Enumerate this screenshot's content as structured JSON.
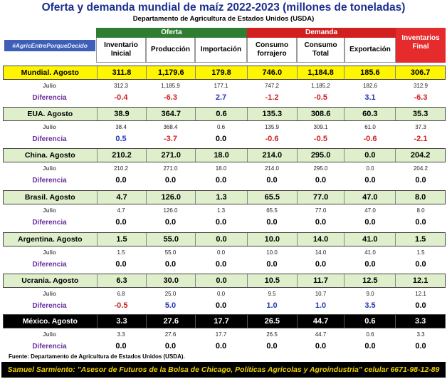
{
  "title": "Oferta y demanda mundial de maíz 2022-2023 (millones de toneladas)",
  "subtitle": "Departamento de Agricultura de Estados Unidos (USDA)",
  "hashtag": "#AgricEntrePorqueDecido",
  "groups": {
    "oferta": "Oferta",
    "demanda": "Demanda",
    "final": "Inventarios Final"
  },
  "columns": [
    "Inventario Inicial",
    "Producción",
    "Importación",
    "Consumo forrajero",
    "Consumo Total",
    "Exportación"
  ],
  "rows": [
    {
      "name": "Mundial. Agosto",
      "agosto": [
        "311.8",
        "1,179.6",
        "179.8",
        "746.0",
        "1,184.8",
        "185.6",
        "306.7"
      ],
      "julio_label": "Julio",
      "julio": [
        "312.3",
        "1,185.9",
        "177.1",
        "747.2",
        "1,185.2",
        "182.6",
        "312.9"
      ],
      "dif_label": "Diferencia",
      "dif": [
        "-0.4",
        "-6.3",
        "2.7",
        "-1.2",
        "-0.5",
        "3.1",
        "-6.3"
      ]
    },
    {
      "name": "EUA. Agosto",
      "agosto": [
        "38.9",
        "364.7",
        "0.6",
        "135.3",
        "308.6",
        "60.3",
        "35.3"
      ],
      "julio_label": "Julio",
      "julio": [
        "38.4",
        "368.4",
        "0.6",
        "135.9",
        "309.1",
        "61.0",
        "37.3"
      ],
      "dif_label": "Diferencia",
      "dif": [
        "0.5",
        "-3.7",
        "0.0",
        "-0.6",
        "-0.5",
        "-0.6",
        "-2.1"
      ]
    },
    {
      "name": "China. Agosto",
      "agosto": [
        "210.2",
        "271.0",
        "18.0",
        "214.0",
        "295.0",
        "0.0",
        "204.2"
      ],
      "julio_label": "Julio",
      "julio": [
        "210.2",
        "271.0",
        "18.0",
        "214.0",
        "295.0",
        "0.0",
        "204.2"
      ],
      "dif_label": "Diferencia",
      "dif": [
        "0.0",
        "0.0",
        "0.0",
        "0.0",
        "0.0",
        "0.0",
        "0.0"
      ]
    },
    {
      "name": "Brasil. Agosto",
      "agosto": [
        "4.7",
        "126.0",
        "1.3",
        "65.5",
        "77.0",
        "47.0",
        "8.0"
      ],
      "julio_label": "Julio",
      "julio": [
        "4.7",
        "126.0",
        "1.3",
        "65.5",
        "77.0",
        "47.0",
        "8.0"
      ],
      "dif_label": "Diferencia",
      "dif": [
        "0.0",
        "0.0",
        "0.0",
        "0.0",
        "0.0",
        "0.0",
        "0.0"
      ]
    },
    {
      "name": "Argentina. Agosto",
      "agosto": [
        "1.5",
        "55.0",
        "0.0",
        "10.0",
        "14.0",
        "41.0",
        "1.5"
      ],
      "julio_label": "Julio",
      "julio": [
        "1.5",
        "55.0",
        "0.0",
        "10.0",
        "14.0",
        "41.0",
        "1.5"
      ],
      "dif_label": "Diferencia",
      "dif": [
        "0.0",
        "0.0",
        "0.0",
        "0.0",
        "0.0",
        "0.0",
        "0.0"
      ]
    },
    {
      "name": "Ucrania. Agosto",
      "agosto": [
        "6.3",
        "30.0",
        "0.0",
        "10.5",
        "11.7",
        "12.5",
        "12.1"
      ],
      "julio_label": "Julio",
      "julio": [
        "6.8",
        "25.0",
        "0.0",
        "9.5",
        "10.7",
        "9.0",
        "12.1"
      ],
      "dif_label": "Diferencia",
      "dif": [
        "-0.5",
        "5.0",
        "0.0",
        "1.0",
        "1.0",
        "3.5",
        "0.0"
      ]
    },
    {
      "name": "México. Agosto",
      "agosto": [
        "3.3",
        "27.6",
        "17.7",
        "26.5",
        "44.7",
        "0.6",
        "3.3"
      ],
      "julio_label": "Julio",
      "julio": [
        "3.3",
        "27.6",
        "17.7",
        "26.5",
        "44.7",
        "0.6",
        "3.3"
      ],
      "dif_label": "Diferencia",
      "dif": [
        "0.0",
        "0.0",
        "0.0",
        "0.0",
        "0.0",
        "0.0",
        "0.0"
      ]
    }
  ],
  "fuente": "Fuente: Departamento de Agricultura de Estados Unidos (USDA).",
  "footer": "Samuel Sarmiento: \"Asesor de Futuros de la Bolsa de Chicago, Políticas Agrícolas y Agroindustria\" celular 6671-98-12-89",
  "colors": {
    "title": "#1b2f8f",
    "oferta": "#2e7d32",
    "demanda": "#d21f1f",
    "final": "#e52b2b",
    "mundial": "#fff500",
    "country": "#dfeecb",
    "mexico": "#000000"
  }
}
